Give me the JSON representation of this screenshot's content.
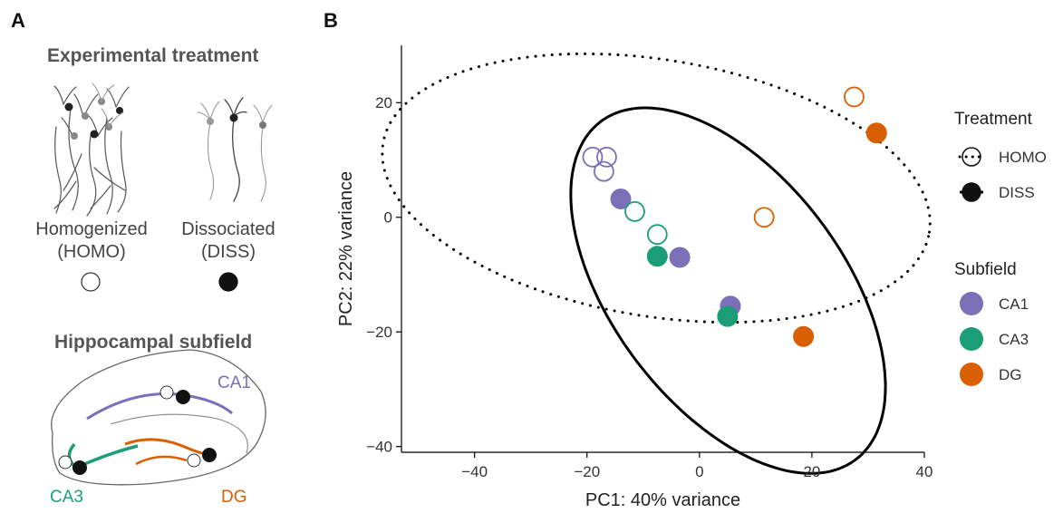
{
  "panels": {
    "a": "A",
    "b": "B"
  },
  "panel_a": {
    "treatment_heading": "Experimental treatment",
    "homo_label_line1": "Homogenized",
    "homo_label_line2": "(HOMO)",
    "diss_label_line1": "Dissociated",
    "diss_label_line2": "(DISS)",
    "subfield_heading": "Hippocampal subfield",
    "ca1_label": "CA1",
    "ca3_label": "CA3",
    "dg_label": "DG",
    "ca1_color": "#7B70B8",
    "ca3_color": "#1B9E77",
    "dg_color": "#D95F02"
  },
  "chart_data": {
    "type": "scatter",
    "xlabel": "PC1: 40% variance",
    "ylabel": "PC2: 22% variance",
    "xlim": [
      -53,
      40
    ],
    "ylim": [
      -41,
      30
    ],
    "xticks": [
      -40,
      -20,
      0,
      20,
      40
    ],
    "yticks": [
      -40,
      -20,
      0,
      20
    ],
    "grid": false,
    "legend_position": "right",
    "legend": {
      "treatment_title": "Treatment",
      "treatment_items": [
        {
          "label": "HOMO",
          "style": "open",
          "line": "dotted"
        },
        {
          "label": "DISS",
          "style": "filled",
          "line": "solid"
        }
      ],
      "subfield_title": "Subfield",
      "subfield_items": [
        {
          "label": "CA1",
          "color": "#7B70B8"
        },
        {
          "label": "CA3",
          "color": "#1B9E77"
        },
        {
          "label": "DG",
          "color": "#D95F02"
        }
      ]
    },
    "colors": {
      "CA1": "#7B70B8",
      "CA3": "#1B9E77",
      "DG": "#D95F02"
    },
    "points": [
      {
        "x": -19,
        "y": 10.5,
        "subfield": "CA1",
        "treatment": "HOMO"
      },
      {
        "x": -16.5,
        "y": 10.5,
        "subfield": "CA1",
        "treatment": "HOMO"
      },
      {
        "x": -17,
        "y": 8,
        "subfield": "CA1",
        "treatment": "HOMO"
      },
      {
        "x": -14,
        "y": 3.2,
        "subfield": "CA1",
        "treatment": "DISS"
      },
      {
        "x": -3.5,
        "y": -7,
        "subfield": "CA1",
        "treatment": "DISS"
      },
      {
        "x": 5.5,
        "y": -15.5,
        "subfield": "CA1",
        "treatment": "DISS"
      },
      {
        "x": -11.5,
        "y": 1,
        "subfield": "CA3",
        "treatment": "HOMO"
      },
      {
        "x": -7.5,
        "y": -3,
        "subfield": "CA3",
        "treatment": "HOMO"
      },
      {
        "x": -7.5,
        "y": -6.8,
        "subfield": "CA3",
        "treatment": "DISS"
      },
      {
        "x": 5,
        "y": -17.3,
        "subfield": "CA3",
        "treatment": "DISS"
      },
      {
        "x": 27.5,
        "y": 21,
        "subfield": "DG",
        "treatment": "HOMO"
      },
      {
        "x": 11.5,
        "y": 0,
        "subfield": "DG",
        "treatment": "HOMO"
      },
      {
        "x": 31.5,
        "y": 14.7,
        "subfield": "DG",
        "treatment": "DISS"
      },
      {
        "x": 18.5,
        "y": -20.8,
        "subfield": "DG",
        "treatment": "DISS"
      }
    ],
    "ellipses": [
      {
        "treatment": "HOMO",
        "cx": -7.7,
        "cy": 5.1,
        "rx": 49.2,
        "ry": 22.4,
        "angle_deg": -9,
        "line": "dotted"
      },
      {
        "treatment": "DISS",
        "cx": 5.1,
        "cy": -12.8,
        "rx": 37.2,
        "ry": 20.4,
        "angle_deg": -52,
        "line": "solid"
      }
    ]
  }
}
